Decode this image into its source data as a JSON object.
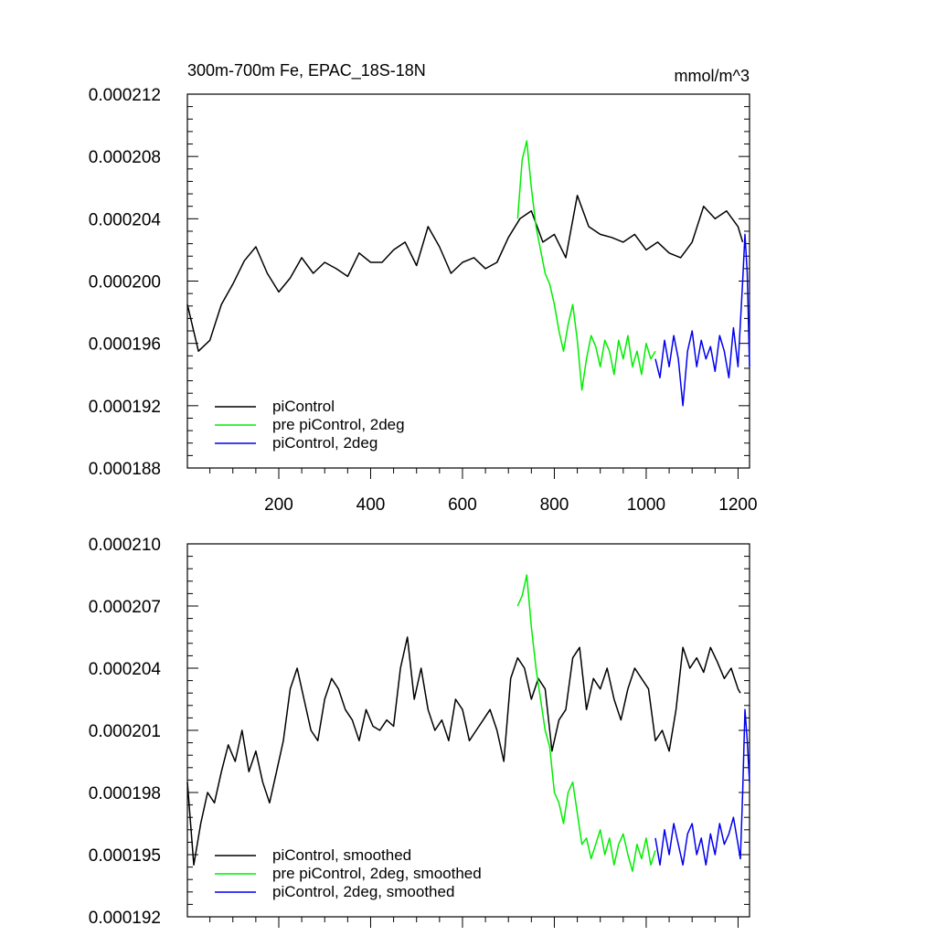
{
  "chart_data": [
    {
      "type": "line",
      "title": "300m-700m Fe, EPAC_18S-18N",
      "units": "mmol/m^3",
      "xlabel": "",
      "ylabel": "",
      "xlim": [
        1,
        1225
      ],
      "ylim": [
        0.000188,
        0.000212
      ],
      "xticks": [
        200,
        400,
        600,
        800,
        1000,
        1200
      ],
      "xtick_labels": [
        "200",
        "400",
        "600",
        "800",
        "1000",
        "1200"
      ],
      "yticks": [
        0.000188,
        0.000192,
        0.000196,
        0.0002,
        0.000204,
        0.000208,
        0.000212
      ],
      "ytick_labels": [
        "0.000188",
        "0.000192",
        "0.000196",
        "0.000200",
        "0.000204",
        "0.000208",
        "0.000212"
      ],
      "grid": false,
      "legend_position": "bottom-left",
      "series": [
        {
          "name": "piControl",
          "color": "#000000",
          "x": [
            1,
            25,
            50,
            75,
            100,
            125,
            150,
            175,
            200,
            225,
            250,
            275,
            300,
            325,
            350,
            375,
            400,
            425,
            450,
            475,
            500,
            525,
            550,
            575,
            600,
            625,
            650,
            675,
            700,
            725,
            750,
            775,
            800,
            825,
            850,
            875,
            900,
            925,
            950,
            975,
            1000,
            1025,
            1050,
            1075,
            1100,
            1125,
            1150,
            1175,
            1200,
            1210
          ],
          "values": [
            0.0001985,
            0.0001955,
            0.0001962,
            0.0001985,
            0.0001998,
            0.0002013,
            0.0002022,
            0.0002005,
            0.0001993,
            0.0002002,
            0.0002015,
            0.0002005,
            0.0002012,
            0.0002008,
            0.0002003,
            0.0002018,
            0.0002012,
            0.0002012,
            0.000202,
            0.0002025,
            0.000201,
            0.0002035,
            0.0002022,
            0.0002005,
            0.0002012,
            0.0002015,
            0.0002008,
            0.0002012,
            0.0002028,
            0.000204,
            0.0002045,
            0.0002025,
            0.000203,
            0.0002015,
            0.0002055,
            0.0002035,
            0.000203,
            0.0002028,
            0.0002025,
            0.000203,
            0.000202,
            0.0002025,
            0.0002018,
            0.0002015,
            0.0002025,
            0.0002048,
            0.000204,
            0.0002045,
            0.0002035,
            0.0002025
          ]
        },
        {
          "name": "pre piControl, 2deg",
          "color": "#00ee00",
          "x": [
            720,
            730,
            740,
            750,
            760,
            770,
            780,
            790,
            800,
            810,
            820,
            830,
            840,
            850,
            860,
            870,
            880,
            890,
            900,
            910,
            920,
            930,
            940,
            950,
            960,
            970,
            980,
            990,
            1000,
            1010,
            1020
          ],
          "values": [
            0.000204,
            0.0002078,
            0.000209,
            0.000206,
            0.0002035,
            0.000202,
            0.0002005,
            0.0001998,
            0.0001985,
            0.0001968,
            0.0001955,
            0.0001972,
            0.0001985,
            0.0001962,
            0.000193,
            0.000195,
            0.0001965,
            0.0001958,
            0.0001945,
            0.0001962,
            0.0001955,
            0.000194,
            0.0001962,
            0.000195,
            0.0001965,
            0.0001945,
            0.0001955,
            0.000194,
            0.000196,
            0.000195,
            0.0001955
          ]
        },
        {
          "name": "piControl, 2deg",
          "color": "#0000ee",
          "x": [
            1020,
            1030,
            1040,
            1050,
            1060,
            1070,
            1080,
            1090,
            1100,
            1110,
            1120,
            1130,
            1140,
            1150,
            1160,
            1170,
            1180,
            1190,
            1200,
            1210,
            1215,
            1220,
            1225
          ],
          "values": [
            0.000195,
            0.0001938,
            0.0001962,
            0.0001945,
            0.0001965,
            0.000195,
            0.000192,
            0.0001955,
            0.0001968,
            0.0001945,
            0.0001962,
            0.000195,
            0.0001958,
            0.0001942,
            0.0001965,
            0.0001955,
            0.0001938,
            0.000197,
            0.0001945,
            0.0002,
            0.000203,
            0.0002005,
            0.0001945
          ]
        }
      ]
    },
    {
      "type": "line",
      "title": "",
      "xlabel": "",
      "ylabel": "",
      "xlim": [
        1,
        1225
      ],
      "ylim": [
        0.000192,
        0.00021
      ],
      "xticks": [
        200,
        400,
        600,
        800,
        1000,
        1200
      ],
      "xtick_labels": [],
      "yticks": [
        0.000192,
        0.000195,
        0.000198,
        0.000201,
        0.000204,
        0.000207,
        0.00021
      ],
      "ytick_labels": [
        "0.000192",
        "0.000195",
        "0.000198",
        "0.000201",
        "0.000204",
        "0.000207",
        "0.000210"
      ],
      "grid": false,
      "legend_position": "bottom-left",
      "series": [
        {
          "name": "piControl, smoothed",
          "color": "#000000",
          "x": [
            1,
            15,
            30,
            45,
            60,
            75,
            90,
            105,
            120,
            135,
            150,
            165,
            180,
            195,
            210,
            225,
            240,
            255,
            270,
            285,
            300,
            315,
            330,
            345,
            360,
            375,
            390,
            405,
            420,
            435,
            450,
            465,
            480,
            495,
            510,
            525,
            540,
            555,
            570,
            585,
            600,
            615,
            630,
            645,
            660,
            675,
            690,
            705,
            720,
            735,
            750,
            765,
            780,
            795,
            810,
            825,
            840,
            855,
            870,
            885,
            900,
            915,
            930,
            945,
            960,
            975,
            990,
            1005,
            1020,
            1035,
            1050,
            1065,
            1080,
            1095,
            1110,
            1125,
            1140,
            1155,
            1170,
            1185,
            1200,
            1205
          ],
          "values": [
            0.0001985,
            0.0001945,
            0.0001965,
            0.000198,
            0.0001975,
            0.000199,
            0.0002003,
            0.0001995,
            0.000201,
            0.000199,
            0.0002,
            0.0001985,
            0.0001975,
            0.000199,
            0.0002005,
            0.000203,
            0.000204,
            0.0002025,
            0.000201,
            0.0002005,
            0.0002025,
            0.0002035,
            0.000203,
            0.000202,
            0.0002015,
            0.0002005,
            0.000202,
            0.0002012,
            0.000201,
            0.0002015,
            0.0002012,
            0.000204,
            0.0002055,
            0.0002025,
            0.000204,
            0.000202,
            0.000201,
            0.0002015,
            0.0002005,
            0.0002025,
            0.000202,
            0.0002005,
            0.000201,
            0.0002015,
            0.000202,
            0.000201,
            0.0001995,
            0.0002035,
            0.0002045,
            0.000204,
            0.0002025,
            0.0002035,
            0.000203,
            0.0002,
            0.0002015,
            0.000202,
            0.0002045,
            0.000205,
            0.000202,
            0.0002035,
            0.000203,
            0.000204,
            0.0002025,
            0.0002015,
            0.000203,
            0.000204,
            0.0002035,
            0.000203,
            0.0002005,
            0.000201,
            0.0002,
            0.000202,
            0.000205,
            0.000204,
            0.0002045,
            0.0002038,
            0.000205,
            0.0002043,
            0.0002035,
            0.000204,
            0.000203,
            0.0002028
          ]
        },
        {
          "name": "pre piControl, 2deg, smoothed",
          "color": "#00ee00",
          "x": [
            720,
            730,
            740,
            750,
            760,
            770,
            780,
            790,
            800,
            810,
            820,
            830,
            840,
            850,
            860,
            870,
            880,
            890,
            900,
            910,
            920,
            930,
            940,
            950,
            960,
            970,
            980,
            990,
            1000,
            1010,
            1020
          ],
          "values": [
            0.000207,
            0.0002075,
            0.0002085,
            0.000206,
            0.000204,
            0.0002025,
            0.000201,
            0.0002002,
            0.000198,
            0.0001975,
            0.0001965,
            0.000198,
            0.0001985,
            0.000197,
            0.0001955,
            0.0001958,
            0.0001948,
            0.0001955,
            0.0001962,
            0.000195,
            0.0001958,
            0.0001945,
            0.0001955,
            0.000196,
            0.000195,
            0.0001942,
            0.0001955,
            0.0001948,
            0.0001958,
            0.0001945,
            0.0001952
          ]
        },
        {
          "name": "piControl, 2deg, smoothed",
          "color": "#0000ee",
          "x": [
            1020,
            1030,
            1040,
            1050,
            1060,
            1070,
            1080,
            1090,
            1100,
            1110,
            1120,
            1130,
            1140,
            1150,
            1160,
            1170,
            1180,
            1190,
            1200,
            1205,
            1210,
            1215,
            1220,
            1225
          ],
          "values": [
            0.0001958,
            0.0001945,
            0.0001962,
            0.000195,
            0.0001965,
            0.0001955,
            0.0001945,
            0.000196,
            0.0001965,
            0.000195,
            0.0001958,
            0.0001945,
            0.000196,
            0.000195,
            0.0001965,
            0.0001955,
            0.000196,
            0.0001968,
            0.0001955,
            0.0001948,
            0.000198,
            0.000202,
            0.0002005,
            0.0001985
          ]
        }
      ]
    }
  ]
}
